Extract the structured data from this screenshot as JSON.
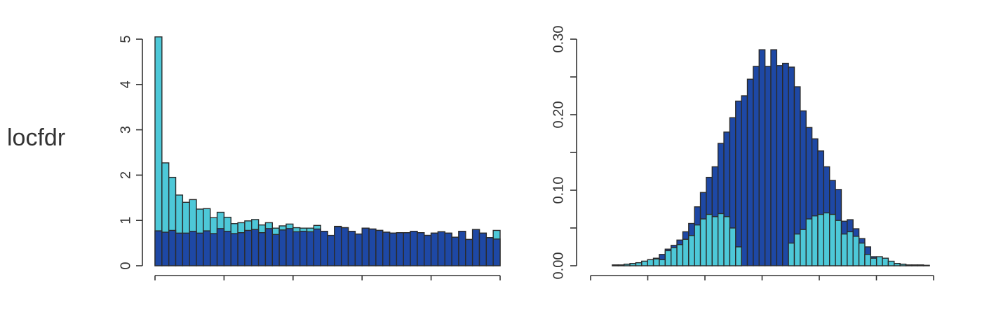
{
  "row_label": "locfdr",
  "colors": {
    "dark_bar": "#1e48a5",
    "light_bar": "#4dc8d8",
    "bar_outline": "#2b2b2b",
    "axis": "#333333",
    "text": "#333333"
  },
  "chart_data": [
    {
      "type": "bar",
      "stacking": "overlay",
      "title": "",
      "xlabel": "",
      "ylabel": "",
      "ylim": [
        0,
        5
      ],
      "yticks": [
        "0",
        "1",
        "2",
        "3",
        "4",
        "5"
      ],
      "xticks_count": 6,
      "xtick_labels_shown": false,
      "grid": false,
      "bins": 50,
      "series": [
        {
          "color": "light",
          "values": [
            5.05,
            2.27,
            1.95,
            1.56,
            1.4,
            1.46,
            1.25,
            1.26,
            1.06,
            1.18,
            1.07,
            0.93,
            0.95,
            0.99,
            1.02,
            0.9,
            0.95,
            0.83,
            0.88,
            0.92,
            0.84,
            0.83,
            0.83,
            0.89,
            0.76,
            0.65,
            0.87,
            0.84,
            0.76,
            0.7,
            0.83,
            0.81,
            0.78,
            0.74,
            0.72,
            0.73,
            0.73,
            0.76,
            0.73,
            0.67,
            0.72,
            0.75,
            0.72,
            0.63,
            0.76,
            0.58,
            0.8,
            0.72,
            0.62,
            0.78
          ]
        },
        {
          "color": "dark",
          "values": [
            0.77,
            0.74,
            0.78,
            0.72,
            0.72,
            0.76,
            0.72,
            0.77,
            0.71,
            0.82,
            0.76,
            0.71,
            0.73,
            0.78,
            0.8,
            0.73,
            0.82,
            0.69,
            0.79,
            0.82,
            0.75,
            0.76,
            0.75,
            0.81,
            0.76,
            0.67,
            0.86,
            0.84,
            0.76,
            0.7,
            0.83,
            0.81,
            0.78,
            0.74,
            0.72,
            0.73,
            0.73,
            0.76,
            0.73,
            0.67,
            0.72,
            0.75,
            0.72,
            0.63,
            0.76,
            0.58,
            0.8,
            0.72,
            0.62,
            0.59
          ]
        }
      ]
    },
    {
      "type": "bar",
      "stacking": "overlay",
      "title": "",
      "xlabel": "",
      "ylabel": "",
      "ylim": [
        0,
        0.3
      ],
      "yticks": [
        "0.00",
        "0.10",
        "0.20",
        "0.30"
      ],
      "yticks_minor": [
        0.05,
        0.15,
        0.25
      ],
      "xticks_count": 7,
      "xtick_labels_shown": false,
      "grid": false,
      "bins": 54,
      "series": [
        {
          "color": "dark",
          "values": [
            0.001,
            0.001,
            0.002,
            0.003,
            0.004,
            0.006,
            0.008,
            0.01,
            0.015,
            0.022,
            0.027,
            0.034,
            0.045,
            0.056,
            0.078,
            0.097,
            0.117,
            0.131,
            0.162,
            0.177,
            0.196,
            0.218,
            0.225,
            0.247,
            0.264,
            0.286,
            0.264,
            0.286,
            0.265,
            0.268,
            0.263,
            0.237,
            0.205,
            0.183,
            0.168,
            0.152,
            0.131,
            0.113,
            0.101,
            0.059,
            0.061,
            0.049,
            0.036,
            0.025,
            0.012,
            0.008,
            0.006,
            0.004,
            0.003,
            0.002,
            0.001,
            0.001,
            0.001,
            0.0005
          ]
        },
        {
          "color": "light",
          "values": [
            0.001,
            0.001,
            0.002,
            0.003,
            0.004,
            0.006,
            0.008,
            0.009,
            0.008,
            0.02,
            0.024,
            0.028,
            0.035,
            0.04,
            0.054,
            0.062,
            0.068,
            0.065,
            0.069,
            0.065,
            0.05,
            0.025,
            0.0,
            0.0,
            0.0,
            0.0,
            0.0,
            0.0,
            0.0,
            0.0,
            0.03,
            0.042,
            0.048,
            0.062,
            0.066,
            0.068,
            0.07,
            0.068,
            0.06,
            0.042,
            0.045,
            0.039,
            0.03,
            0.015,
            0.01,
            0.012,
            0.01,
            0.006,
            0.003,
            0.002,
            0.001,
            0.001,
            0.001,
            0.0005
          ]
        }
      ]
    }
  ]
}
